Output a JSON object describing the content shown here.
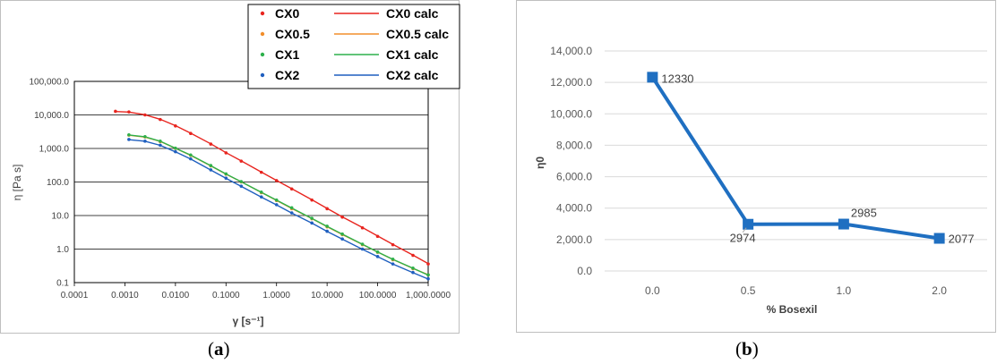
{
  "chart_data": [
    {
      "type": "line",
      "panel_label": "a",
      "xlabel": "γ [s⁻¹]",
      "ylabel": "η [Pa s]",
      "xscale": "log",
      "yscale": "log",
      "xlim": [
        0.0001,
        1000
      ],
      "ylim": [
        0.1,
        100000
      ],
      "x_tick_labels": [
        "0.0001",
        "0.0010",
        "0.0100",
        "0.1000",
        "1.0000",
        "10.0000",
        "100.0000",
        "1,000.0000"
      ],
      "y_tick_labels": [
        "0.1",
        "1.0",
        "10.0",
        "100.0",
        "1,000.0",
        "10,000.0",
        "100,000.0"
      ],
      "grid": "horizontal",
      "legend_position": "top-right",
      "series": [
        {
          "name": "CX0",
          "kind": "points",
          "color": "#e8251f",
          "x": [
            0.00065,
            0.0012,
            0.0025,
            0.005,
            0.01,
            0.02,
            0.05,
            0.1,
            0.2,
            0.5,
            1,
            2,
            5,
            10,
            20,
            50,
            100,
            200,
            500,
            1000
          ],
          "y": [
            12800,
            12300,
            10000,
            7300,
            4700,
            2800,
            1350,
            740,
            420,
            195,
            110,
            62,
            29,
            16,
            9,
            4.3,
            2.4,
            1.35,
            0.65,
            0.36
          ]
        },
        {
          "name": "CX0.5",
          "kind": "points",
          "color": "#f28e2b",
          "x": [
            0.0012,
            0.0025,
            0.005,
            0.01,
            0.02,
            0.05,
            0.1,
            0.2,
            0.5,
            1,
            2,
            5,
            10,
            20,
            50,
            100,
            200,
            500,
            1000
          ],
          "y": [
            2500,
            2200,
            1600,
            1000,
            620,
            300,
            170,
            100,
            48,
            28,
            16,
            8,
            4.6,
            2.7,
            1.35,
            0.8,
            0.48,
            0.26,
            0.17
          ]
        },
        {
          "name": "CX1",
          "kind": "points",
          "color": "#2db14b",
          "x": [
            0.0012,
            0.0025,
            0.005,
            0.01,
            0.02,
            0.05,
            0.1,
            0.2,
            0.5,
            1,
            2,
            5,
            10,
            20,
            50,
            100,
            200,
            500,
            1000
          ],
          "y": [
            2550,
            2250,
            1650,
            1020,
            640,
            310,
            175,
            103,
            50,
            29,
            17,
            8.3,
            4.8,
            2.8,
            1.4,
            0.82,
            0.5,
            0.27,
            0.17
          ]
        },
        {
          "name": "CX2",
          "kind": "points",
          "color": "#1f5fbf",
          "x": [
            0.0012,
            0.0025,
            0.005,
            0.01,
            0.02,
            0.05,
            0.1,
            0.2,
            0.5,
            1,
            2,
            5,
            10,
            20,
            50,
            100,
            200,
            500,
            1000
          ],
          "y": [
            1850,
            1650,
            1250,
            800,
            490,
            230,
            130,
            75,
            36,
            21,
            12,
            6,
            3.4,
            2,
            1,
            0.6,
            0.36,
            0.2,
            0.13
          ]
        },
        {
          "name": "CX0 calc",
          "kind": "line",
          "color": "#e8251f",
          "x": [
            0.00065,
            0.0012,
            0.0025,
            0.005,
            0.01,
            0.02,
            0.05,
            0.1,
            0.2,
            0.5,
            1,
            2,
            5,
            10,
            20,
            50,
            100,
            200,
            500,
            1000
          ],
          "y": [
            12600,
            12200,
            10100,
            7400,
            4800,
            2850,
            1380,
            750,
            425,
            198,
            112,
            63,
            29.5,
            16.3,
            9.1,
            4.4,
            2.45,
            1.38,
            0.66,
            0.37
          ]
        },
        {
          "name": "CX0.5 calc",
          "kind": "line",
          "color": "#f28e2b",
          "x": [
            0.0012,
            0.0025,
            0.005,
            0.01,
            0.02,
            0.05,
            0.1,
            0.2,
            0.5,
            1,
            2,
            5,
            10,
            20,
            50,
            100,
            200,
            500,
            1000
          ],
          "y": [
            2480,
            2180,
            1620,
            1010,
            625,
            302,
            171,
            101,
            49,
            28.3,
            16.2,
            8.1,
            4.65,
            2.72,
            1.37,
            0.81,
            0.49,
            0.265,
            0.172
          ]
        },
        {
          "name": "CX1 calc",
          "kind": "line",
          "color": "#2db14b",
          "x": [
            0.0012,
            0.0025,
            0.005,
            0.01,
            0.02,
            0.05,
            0.1,
            0.2,
            0.5,
            1,
            2,
            5,
            10,
            20,
            50,
            100,
            200,
            500,
            1000
          ],
          "y": [
            2520,
            2230,
            1640,
            1015,
            635,
            308,
            174,
            102,
            49.5,
            28.8,
            16.8,
            8.2,
            4.75,
            2.78,
            1.39,
            0.815,
            0.495,
            0.268,
            0.168
          ]
        },
        {
          "name": "CX2 calc",
          "kind": "line",
          "color": "#1f5fbf",
          "x": [
            0.0012,
            0.0025,
            0.005,
            0.01,
            0.02,
            0.05,
            0.1,
            0.2,
            0.5,
            1,
            2,
            5,
            10,
            20,
            50,
            100,
            200,
            500,
            1000
          ],
          "y": [
            1830,
            1640,
            1240,
            790,
            485,
            228,
            129,
            74,
            35.5,
            20.8,
            11.9,
            5.95,
            3.38,
            1.98,
            0.99,
            0.595,
            0.357,
            0.198,
            0.128
          ]
        }
      ]
    },
    {
      "type": "line",
      "panel_label": "b",
      "xlabel": "% Bosexil",
      "ylabel": "η0",
      "categories": [
        "0.0",
        "0.5",
        "1.0",
        "2.0"
      ],
      "series": [
        {
          "color": "#1f6fc1",
          "values": [
            12330,
            2974,
            2985,
            2077
          ]
        }
      ],
      "data_labels": [
        "12330",
        "2974",
        "2985",
        "2077"
      ],
      "ylim": [
        0,
        14000
      ],
      "y_tick_labels": [
        "0.0",
        "2,000.0",
        "4,000.0",
        "6,000.0",
        "8,000.0",
        "10,000.0",
        "12,000.0",
        "14,000.0"
      ],
      "grid": "horizontal",
      "marker": "square"
    }
  ],
  "captions": {
    "a": {
      "open": "(",
      "letter": "a",
      "close": ")"
    },
    "b": {
      "open": "(",
      "letter": "b",
      "close": ")"
    }
  }
}
